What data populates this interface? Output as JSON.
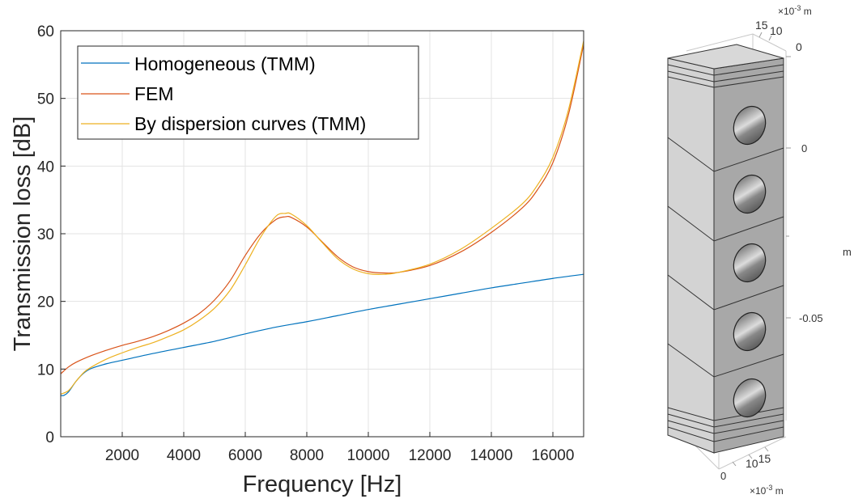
{
  "chart_data": {
    "type": "line",
    "xlabel": "Frequency [Hz]",
    "ylabel": "Transmission loss [dB]",
    "xlim": [
      0,
      17000
    ],
    "ylim": [
      0,
      60
    ],
    "xticks": [
      2000,
      4000,
      6000,
      8000,
      10000,
      12000,
      14000,
      16000
    ],
    "xtick_labels": [
      "2000",
      "4000",
      "6000",
      "8000",
      "10000",
      "12000",
      "14000",
      "16000"
    ],
    "yticks": [
      0,
      10,
      20,
      30,
      40,
      50,
      60
    ],
    "ytick_labels": [
      "0",
      "10",
      "20",
      "30",
      "40",
      "50",
      "60"
    ],
    "grid": true,
    "legend_position": "top-left",
    "series": [
      {
        "name": "Homogeneous (TMM)",
        "color": "#0072BD",
        "x": [
          0,
          100,
          250,
          500,
          750,
          1000,
          1500,
          2000,
          3000,
          4000,
          5000,
          6000,
          7000,
          8000,
          9000,
          10000,
          11000,
          12000,
          13000,
          14000,
          15000,
          16000,
          17000
        ],
        "y": [
          6.1,
          6.1,
          6.6,
          8.2,
          9.4,
          10.1,
          10.8,
          11.3,
          12.3,
          13.2,
          14.1,
          15.2,
          16.2,
          17.0,
          17.9,
          18.8,
          19.6,
          20.4,
          21.2,
          22.0,
          22.7,
          23.4,
          24.0
        ]
      },
      {
        "name": "FEM",
        "color": "#D95319",
        "x": [
          0,
          250,
          500,
          1000,
          1500,
          2000,
          2500,
          3000,
          3500,
          4000,
          4500,
          5000,
          5500,
          6000,
          6500,
          7000,
          7300,
          7500,
          8000,
          8500,
          9000,
          9500,
          10000,
          10500,
          11000,
          12000,
          13000,
          14000,
          15000,
          15500,
          16000,
          16500,
          17000
        ],
        "y": [
          9.3,
          10.3,
          11.0,
          12.0,
          12.8,
          13.5,
          14.1,
          14.8,
          15.7,
          16.8,
          18.2,
          20.2,
          23.0,
          26.8,
          30.0,
          32.1,
          32.5,
          32.4,
          31.0,
          28.8,
          26.6,
          25.1,
          24.4,
          24.2,
          24.3,
          25.3,
          27.3,
          30.2,
          33.8,
          36.5,
          40.5,
          47.5,
          58.0
        ]
      },
      {
        "name": "By dispersion curves (TMM)",
        "color": "#EDB120",
        "x": [
          0,
          250,
          500,
          750,
          1000,
          1500,
          2000,
          2500,
          3000,
          3500,
          4000,
          4500,
          5000,
          5500,
          6000,
          6500,
          7000,
          7300,
          7500,
          8000,
          8500,
          9000,
          9500,
          10000,
          10500,
          11000,
          12000,
          13000,
          14000,
          15000,
          15500,
          16000,
          16500,
          17000
        ],
        "y": [
          6.3,
          6.8,
          8.2,
          9.5,
          10.3,
          11.5,
          12.4,
          13.2,
          13.9,
          14.8,
          15.8,
          17.2,
          19.0,
          21.6,
          25.4,
          29.5,
          32.6,
          33.0,
          32.9,
          31.2,
          28.7,
          26.3,
          24.8,
          24.1,
          24.0,
          24.3,
          25.5,
          27.7,
          30.8,
          34.4,
          37.2,
          41.3,
          48.2,
          58.5
        ]
      }
    ]
  },
  "model": {
    "top_axis_exponent": "×10",
    "top_axis_exponent_power": "-3",
    "top_axis_unit": " m",
    "top_tick_15": "15",
    "top_tick_10": "10",
    "top_tick_0": "0",
    "side_tick_0": "0",
    "side_tick_neg": "-0.05",
    "side_axis_unit": "m",
    "bottom_tick_0": "0",
    "bottom_tick_10": "10",
    "bottom_tick_15": "15",
    "bottom_axis_exponent": "×10",
    "bottom_axis_exponent_power": "-3",
    "bottom_axis_unit": " m",
    "unit_cells": 5
  }
}
